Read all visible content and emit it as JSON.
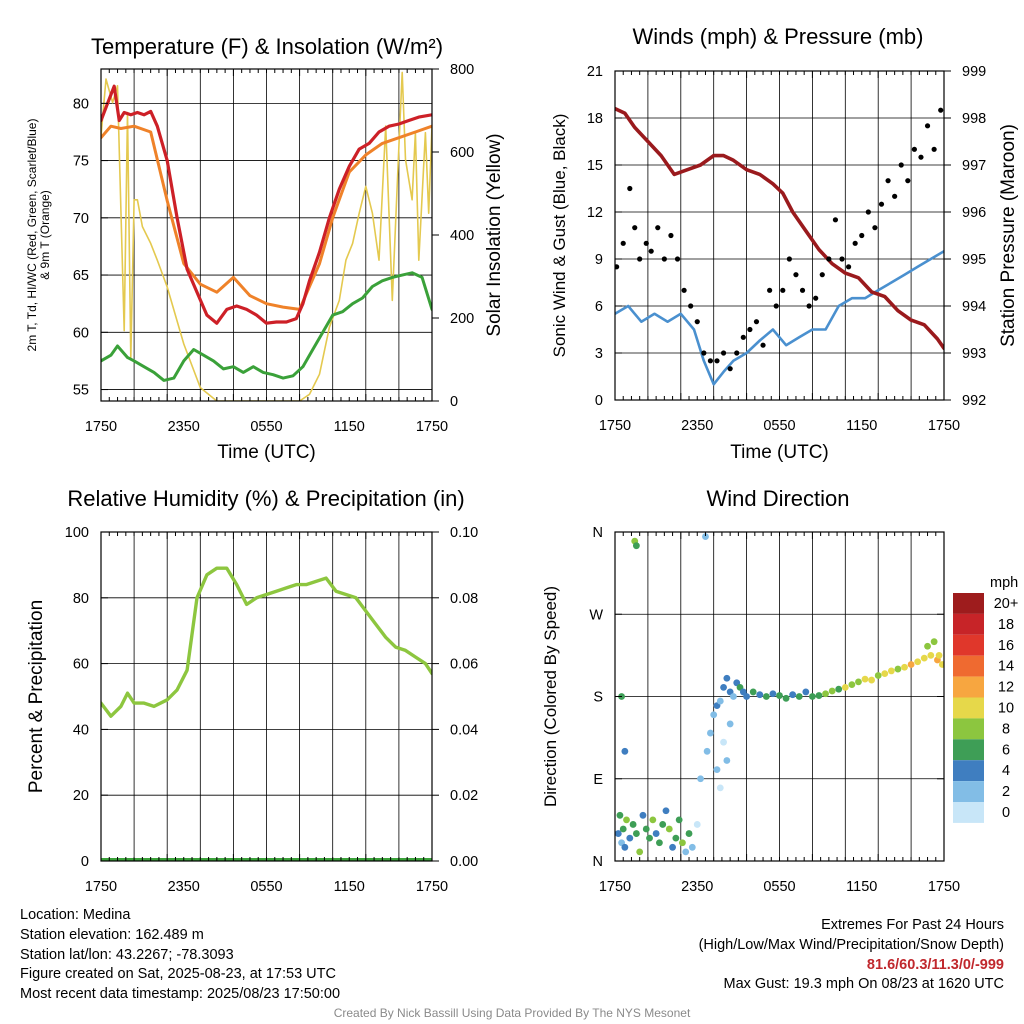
{
  "chart_data": [
    {
      "id": "temp",
      "type": "line",
      "title": "Temperature (F) & Insolation (W/m²)",
      "xlabel": "Time (UTC)",
      "ylabel_lines": [
        "2m T, Td, HI/WC (Red, Green, Scarlet/Blue)",
        "& 9m T (Orange)"
      ],
      "ylabel_right": "Solar Insolation (Yellow)",
      "x_ticks": [
        "1750",
        "2350",
        "0550",
        "1150",
        "1750"
      ],
      "ylim": [
        54,
        83
      ],
      "y_ticks": [
        55,
        60,
        65,
        70,
        75,
        80
      ],
      "y2lim": [
        0,
        990
      ],
      "y2_ticks": [
        0,
        200,
        400,
        600,
        800
      ],
      "grid": true,
      "series": [
        {
          "color": "#e4c94f",
          "axis": "right",
          "width": 1.6,
          "x": [
            0,
            0.15,
            0.35,
            0.5,
            0.7,
            0.8,
            0.9,
            1.0,
            1.1,
            1.25,
            1.5,
            1.7,
            2.0,
            2.5,
            3,
            3.5,
            4,
            4.5,
            5,
            5.5,
            6,
            6.3,
            6.6,
            6.9,
            7.2,
            7.4,
            7.6,
            7.8,
            8.0,
            8.2,
            8.4,
            8.6,
            8.8,
            9.0,
            9.1,
            9.2,
            9.4,
            9.5,
            9.6,
            9.8,
            9.9,
            10.0
          ],
          "y": [
            790,
            960,
            890,
            940,
            210,
            860,
            130,
            600,
            600,
            520,
            470,
            420,
            340,
            170,
            40,
            0,
            0,
            0,
            0,
            0,
            0,
            20,
            80,
            220,
            300,
            420,
            470,
            560,
            640,
            560,
            420,
            820,
            300,
            760,
            980,
            720,
            600,
            800,
            420,
            800,
            560,
            820
          ]
        },
        {
          "color": "#ef8229",
          "axis": "left",
          "width": 3,
          "x": [
            0,
            0.3,
            0.6,
            1,
            1.5,
            2,
            2.5,
            3,
            3.5,
            4,
            4.5,
            5,
            5.5,
            6,
            6.3,
            6.6,
            7,
            7.5,
            8,
            8.5,
            9,
            9.5,
            10
          ],
          "y": [
            77,
            78,
            77.8,
            78,
            77.5,
            71.5,
            66,
            64.2,
            63.5,
            64.8,
            63.2,
            62.5,
            62.2,
            62,
            64,
            66,
            70,
            74,
            75.5,
            76.5,
            77,
            77.5,
            78
          ]
        },
        {
          "color": "#cd2027",
          "axis": "left",
          "width": 3.2,
          "x": [
            0,
            0.2,
            0.4,
            0.55,
            0.7,
            0.9,
            1.1,
            1.3,
            1.5,
            1.7,
            2.0,
            2.3,
            2.6,
            2.9,
            3.2,
            3.5,
            3.8,
            4.1,
            4.4,
            4.7,
            5.0,
            5.3,
            5.6,
            5.9,
            6.1,
            6.3,
            6.6,
            6.9,
            7.2,
            7.5,
            7.8,
            8.1,
            8.4,
            8.7,
            9.0,
            9.3,
            9.6,
            10.0
          ],
          "y": [
            78.5,
            80,
            81.5,
            78.5,
            79.2,
            79,
            79.2,
            79,
            79.3,
            78,
            75,
            70,
            65.5,
            63.5,
            61.5,
            60.8,
            62,
            62.3,
            62,
            61.5,
            60.8,
            60.9,
            60.9,
            61.2,
            62.5,
            64.5,
            67,
            70,
            72.5,
            74.5,
            76,
            76.5,
            77.5,
            78,
            78.2,
            78.5,
            78.8,
            79
          ]
        },
        {
          "color": "#3aa139",
          "axis": "left",
          "width": 3,
          "x": [
            0,
            0.3,
            0.5,
            0.8,
            1,
            1.3,
            1.6,
            1.9,
            2.2,
            2.5,
            2.8,
            3.1,
            3.4,
            3.7,
            4,
            4.3,
            4.6,
            4.9,
            5.2,
            5.5,
            5.8,
            6.1,
            6.4,
            6.7,
            7.0,
            7.3,
            7.6,
            7.9,
            8.2,
            8.5,
            8.8,
            9.1,
            9.4,
            9.7,
            10
          ],
          "y": [
            57.5,
            58,
            58.8,
            57.8,
            57.5,
            57,
            56.5,
            55.8,
            56,
            57.5,
            58.5,
            58,
            57.5,
            56.8,
            57,
            56.5,
            57,
            56.5,
            56.3,
            56,
            56.2,
            57,
            58.5,
            60,
            61.5,
            61.8,
            62.5,
            63,
            64,
            64.5,
            64.8,
            65,
            65.2,
            64.8,
            62
          ]
        }
      ]
    },
    {
      "id": "wind",
      "type": "line",
      "title": "Winds (mph) & Pressure (mb)",
      "xlabel": "Time (UTC)",
      "ylabel": "Sonic Wind & Gust (Blue, Black)",
      "ylabel_right": "Station Pressure (Maroon)",
      "x_ticks": [
        "1750",
        "2350",
        "0550",
        "1150",
        "1750"
      ],
      "ylim": [
        0,
        21
      ],
      "y_ticks": [
        0,
        3,
        6,
        9,
        12,
        15,
        18,
        21
      ],
      "y2lim": [
        992,
        999
      ],
      "y2_ticks": [
        992,
        993,
        994,
        995,
        996,
        997,
        998,
        999
      ],
      "grid": true,
      "series": [
        {
          "color": "#4a90cf",
          "axis": "left",
          "width": 2.6,
          "x": [
            0,
            0.4,
            0.8,
            1.2,
            1.6,
            2.0,
            2.4,
            2.7,
            3.0,
            3.3,
            3.6,
            4.0,
            4.4,
            4.8,
            5.2,
            5.6,
            6.0,
            6.4,
            6.8,
            7.2,
            7.6,
            8.0,
            8.4,
            8.8,
            9.2,
            9.6,
            10.0
          ],
          "y": [
            5.5,
            6,
            5,
            5.5,
            5,
            5.5,
            4.5,
            2.5,
            1,
            1.8,
            2.5,
            3,
            3.8,
            4.5,
            3.5,
            4,
            4.5,
            4.5,
            6,
            6.5,
            6.5,
            7,
            7.5,
            8,
            8.5,
            9,
            9.5
          ]
        },
        {
          "color": "#9a1a1d",
          "axis": "right",
          "width": 3.6,
          "x": [
            0,
            0.3,
            0.6,
            1.0,
            1.4,
            1.8,
            2.2,
            2.6,
            3.0,
            3.3,
            3.6,
            4.0,
            4.4,
            4.8,
            5.1,
            5.4,
            5.8,
            6.2,
            6.6,
            7.0,
            7.4,
            7.8,
            8.2,
            8.6,
            9.0,
            9.4,
            9.8,
            10.0
          ],
          "y": [
            998.2,
            998.1,
            997.8,
            997.5,
            997.2,
            996.8,
            996.9,
            997.0,
            997.2,
            997.2,
            997.1,
            996.9,
            996.8,
            996.6,
            996.4,
            996.0,
            995.6,
            995.2,
            994.9,
            994.7,
            994.6,
            994.3,
            994.2,
            993.9,
            993.7,
            993.6,
            993.3,
            993.1
          ]
        }
      ],
      "gust_points": {
        "color": "#000000",
        "x": [
          0.05,
          0.25,
          0.45,
          0.6,
          0.75,
          0.95,
          1.1,
          1.3,
          1.5,
          1.7,
          1.9,
          2.1,
          2.3,
          2.5,
          2.7,
          2.9,
          3.1,
          3.3,
          3.5,
          3.7,
          3.9,
          4.1,
          4.3,
          4.5,
          4.7,
          4.9,
          5.1,
          5.3,
          5.5,
          5.7,
          5.9,
          6.1,
          6.3,
          6.5,
          6.7,
          6.9,
          7.1,
          7.3,
          7.5,
          7.7,
          7.9,
          8.1,
          8.3,
          8.5,
          8.7,
          8.9,
          9.1,
          9.3,
          9.5,
          9.7,
          9.9
        ],
        "y": [
          8.5,
          10,
          13.5,
          11,
          9,
          10,
          9.5,
          11,
          9,
          10.5,
          9,
          7,
          6,
          5,
          3,
          2.5,
          2.5,
          3,
          2,
          3,
          4,
          4.5,
          5,
          3.5,
          7,
          6,
          7,
          9,
          8,
          7,
          6,
          6.5,
          8,
          9,
          11.5,
          9,
          8.5,
          10,
          10.5,
          12,
          11,
          12.5,
          14,
          13,
          15,
          14,
          16,
          15.5,
          17.5,
          16,
          18.5
        ]
      }
    },
    {
      "id": "rh",
      "type": "line",
      "title": "Relative Humidity (%) & Precipitation (in)",
      "ylabel": "Percent & Precipitation",
      "x_ticks": [
        "1750",
        "2350",
        "0550",
        "1150",
        "1750"
      ],
      "ylim": [
        0,
        100
      ],
      "y_ticks": [
        0,
        20,
        40,
        60,
        80,
        100
      ],
      "y2lim": [
        0,
        0.1
      ],
      "y2_ticks": [
        "0.00",
        "0.02",
        "0.04",
        "0.06",
        "0.08",
        "0.10"
      ],
      "grid": true,
      "series": [
        {
          "color": "#8dc63f",
          "axis": "left",
          "width": 3.4,
          "x": [
            0,
            0.3,
            0.6,
            0.8,
            1.0,
            1.3,
            1.6,
            2.0,
            2.3,
            2.6,
            2.9,
            3.2,
            3.5,
            3.8,
            4.1,
            4.4,
            4.7,
            5.0,
            5.3,
            5.6,
            5.9,
            6.2,
            6.5,
            6.8,
            7.1,
            7.4,
            7.7,
            8.0,
            8.3,
            8.6,
            8.9,
            9.2,
            9.5,
            9.8,
            10.0
          ],
          "y": [
            48,
            44,
            47,
            51,
            48,
            48,
            47,
            49,
            52,
            58,
            80,
            87,
            89,
            89,
            84,
            78,
            80,
            81,
            82,
            83,
            84,
            84,
            85,
            86,
            82,
            81,
            80,
            76,
            72,
            68,
            65,
            64,
            62,
            60,
            57
          ]
        },
        {
          "color": "#3aa139",
          "axis": "right",
          "width": 6,
          "x": [
            0,
            10
          ],
          "y": [
            0,
            0
          ]
        }
      ]
    },
    {
      "id": "dir",
      "type": "scatter",
      "title": "Wind Direction",
      "ylabel": "Direction (Colored By Speed)",
      "x_ticks": [
        "1750",
        "2350",
        "0550",
        "1150",
        "1750"
      ],
      "y_ticks": [
        "N",
        "E",
        "S",
        "W",
        "N"
      ],
      "ylim": [
        0,
        360
      ],
      "grid": true,
      "colorbar": {
        "unit": "mph",
        "labels": [
          "20+",
          "18",
          "16",
          "14",
          "12",
          "10",
          "8",
          "6",
          "4",
          "2",
          "0"
        ],
        "colors": [
          "#9e1c1d",
          "#c72428",
          "#e0372b",
          "#ef6a30",
          "#f7a640",
          "#e6d84a",
          "#8cc63f",
          "#3e9e56",
          "#3f7ec0",
          "#82bde6",
          "#c8e6f8"
        ]
      },
      "points": {
        "x": [
          0.1,
          0.15,
          0.2,
          0.25,
          0.3,
          0.35,
          0.45,
          0.55,
          0.65,
          0.75,
          0.85,
          0.95,
          1.05,
          1.15,
          1.25,
          1.35,
          1.45,
          1.55,
          1.65,
          1.75,
          1.85,
          1.95,
          2.05,
          2.15,
          2.25,
          2.35,
          2.5,
          0.6,
          0.65,
          2.75,
          0.2,
          0.3,
          2.6,
          2.8,
          2.9,
          3.0,
          3.1,
          3.2,
          3.3,
          3.4,
          3.5,
          3.6,
          3.7,
          3.8,
          3.9,
          4.0,
          4.2,
          4.4,
          4.6,
          4.8,
          5.0,
          5.2,
          5.4,
          5.6,
          5.8,
          6.0,
          6.2,
          6.4,
          6.6,
          6.8,
          7.0,
          7.2,
          7.4,
          7.6,
          7.8,
          8.0,
          8.2,
          8.4,
          8.6,
          8.8,
          9.0,
          9.2,
          9.4,
          9.6,
          9.8,
          9.95,
          3.1,
          3.3,
          3.5,
          3.4,
          3.2,
          9.7,
          9.5,
          9.85
        ],
        "y": [
          30,
          50,
          20,
          35,
          15,
          45,
          25,
          40,
          30,
          10,
          50,
          35,
          25,
          45,
          30,
          20,
          40,
          55,
          35,
          15,
          25,
          45,
          20,
          10,
          30,
          15,
          40,
          350,
          345,
          355,
          180,
          120,
          90,
          120,
          140,
          160,
          170,
          175,
          190,
          200,
          185,
          180,
          195,
          190,
          185,
          180,
          185,
          182,
          180,
          183,
          181,
          178,
          182,
          180,
          185,
          180,
          181,
          183,
          186,
          188,
          190,
          193,
          196,
          199,
          198,
          203,
          205,
          208,
          210,
          212,
          215,
          218,
          222,
          225,
          220,
          215,
          100,
          130,
          150,
          110,
          80,
          240,
          235,
          225
        ],
        "speed": [
          4,
          6,
          2,
          5,
          3,
          7,
          4,
          6,
          5,
          8,
          4,
          6,
          5,
          7,
          4,
          6,
          5,
          3,
          7,
          4,
          6,
          5,
          8,
          2,
          6,
          1,
          0,
          7,
          6,
          1,
          6,
          4,
          1,
          2,
          1,
          2,
          3,
          2,
          3,
          4,
          3,
          2,
          4,
          5,
          3,
          4,
          5,
          4,
          5,
          4,
          5,
          6,
          4,
          5,
          4,
          6,
          5,
          7,
          8,
          6,
          9,
          8,
          7,
          9,
          10,
          8,
          9,
          10,
          7,
          9,
          11,
          10,
          9,
          10,
          11,
          10,
          1,
          0,
          2,
          1,
          0,
          8,
          7,
          9
        ]
      }
    }
  ],
  "info_left": {
    "location": "Location: Medina",
    "elevation": "Station elevation: 162.489 m",
    "latlon": "Station lat/lon: 43.2267; -78.3093",
    "created": "Figure created on Sat, 2025-08-23, at 17:53 UTC",
    "recent": "Most recent data timestamp: 2025/08/23 17:50:00"
  },
  "info_right": {
    "heading": "Extremes For Past 24 Hours",
    "subheading": "(High/Low/Max Wind/Precipitation/Snow Depth)",
    "values": "81.6/60.3/11.3/0/-999",
    "gust": "Max Gust: 19.3 mph On 08/23 at 1620 UTC"
  },
  "credit": "Created By Nick Bassill Using Data Provided By The NYS Mesonet"
}
